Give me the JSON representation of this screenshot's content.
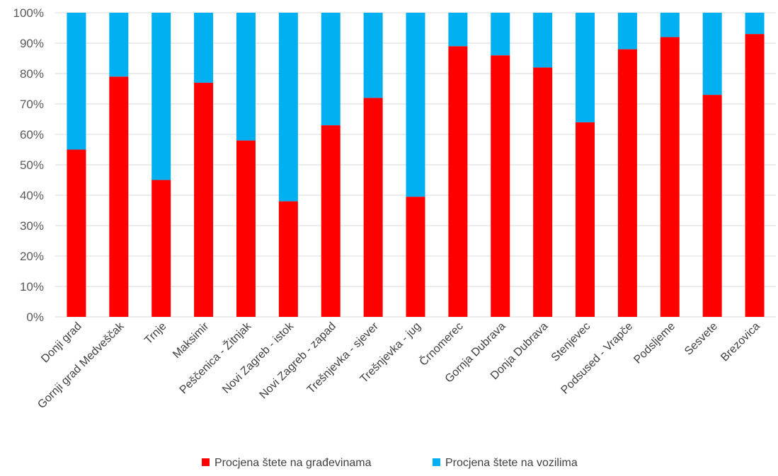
{
  "chart_data": {
    "type": "bar",
    "stacked": true,
    "percent_stacked": true,
    "categories": [
      "Donji grad",
      "Gornji grad Medveščak",
      "Trnje",
      "Maksimir",
      "Peščenica - Žitnjak",
      "Novi Zagreb - istok",
      "Novi Zagreb - zapad",
      "Trešnjevka - sjever",
      "Trešnjevka - jug",
      "Črnomerec",
      "Gornja Dubrava",
      "Donja Dubrava",
      "Stenjevec",
      "Podsused - Vrapče",
      "Podsljeme",
      "Sesvete",
      "Brezovica"
    ],
    "series": [
      {
        "name": "Procjena štete na građevinama",
        "color": "#ff0000",
        "values": [
          55,
          79,
          45,
          77,
          58,
          38,
          63,
          72,
          39.5,
          89,
          86,
          82,
          64,
          88,
          92,
          73,
          93
        ]
      },
      {
        "name": "Procjena štete na vozilima",
        "color": "#00b0f0",
        "values": [
          45,
          21,
          55,
          23,
          42,
          62,
          37,
          28,
          60.5,
          11,
          14,
          18,
          36,
          12,
          8,
          27,
          7
        ]
      }
    ],
    "y_ticks": [
      "0%",
      "10%",
      "20%",
      "30%",
      "40%",
      "50%",
      "60%",
      "70%",
      "80%",
      "90%",
      "100%"
    ],
    "ylim": [
      0,
      100
    ],
    "grid": true,
    "legend_position": "bottom"
  }
}
